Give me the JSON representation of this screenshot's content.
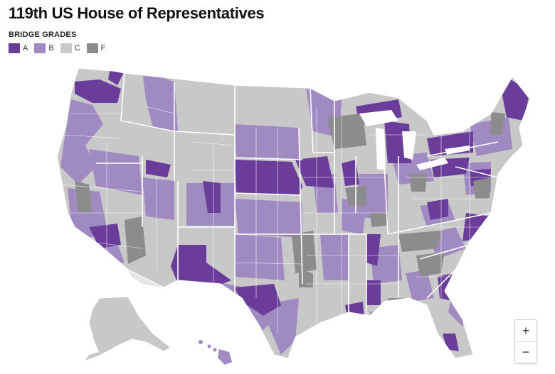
{
  "title": "119th US House of Representatives",
  "legend": {
    "title": "BRIDGE GRADES",
    "items": [
      {
        "label": "A",
        "color": "#6a3d9a"
      },
      {
        "label": "B",
        "color": "#a08ac2"
      },
      {
        "label": "C",
        "color": "#c8c8c8"
      },
      {
        "label": "F",
        "color": "#8c8c8c"
      }
    ]
  },
  "zoom": {
    "in_label": "+",
    "out_label": "−"
  }
}
